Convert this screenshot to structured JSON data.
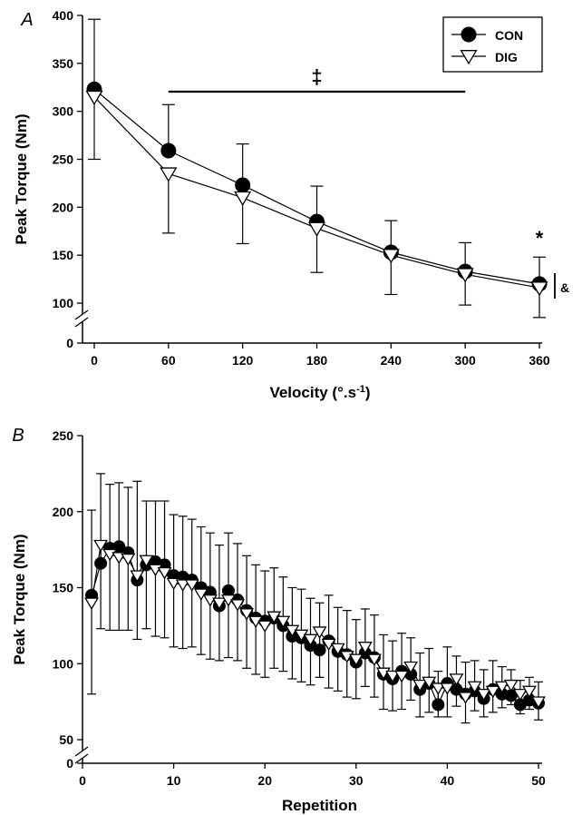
{
  "chart_data": [
    {
      "panel_label": "A",
      "type": "line",
      "xlabel": "Velocity (°.s",
      "xlabel_sup": "-1",
      "xlabel_close": ")",
      "ylabel": "Peak Torque (Nm)",
      "xlim": [
        0,
        360
      ],
      "ylim": [
        100,
        400
      ],
      "axis_break": true,
      "x_ticks": [
        0,
        60,
        120,
        180,
        240,
        300,
        360
      ],
      "y_ticks": [
        100,
        150,
        200,
        250,
        300,
        350,
        400
      ],
      "y_zero_label": "0",
      "x": [
        0,
        60,
        120,
        180,
        240,
        300,
        360
      ],
      "series": [
        {
          "name": "CON",
          "marker": "filled-circle",
          "values": [
            323,
            259,
            223,
            185,
            153,
            133,
            120
          ],
          "err_up": [
            73,
            48,
            43,
            37,
            33,
            30,
            28
          ]
        },
        {
          "name": "DIG",
          "marker": "open-triangle-down",
          "values": [
            315,
            235,
            210,
            178,
            150,
            130,
            116
          ],
          "err_down": [
            65,
            62,
            48,
            46,
            41,
            32,
            31
          ]
        }
      ],
      "legend": {
        "placement": "top-right",
        "entries": [
          "CON",
          "DIG"
        ]
      },
      "annotations": {
        "double_dagger": "‡",
        "double_dagger_range": [
          60,
          300
        ],
        "asterisk": "*",
        "ampersand": "&"
      },
      "grid": false
    },
    {
      "panel_label": "B",
      "type": "line",
      "xlabel": "Repetition",
      "ylabel": "Peak Torque (Nm)",
      "xlim": [
        0,
        50
      ],
      "ylim": [
        50,
        250
      ],
      "axis_break": true,
      "x_ticks": [
        0,
        10,
        20,
        30,
        40,
        50
      ],
      "y_ticks": [
        50,
        100,
        150,
        200,
        250
      ],
      "y_zero_label": "0",
      "x": [
        1,
        2,
        3,
        4,
        5,
        6,
        7,
        8,
        9,
        10,
        11,
        12,
        13,
        14,
        15,
        16,
        17,
        18,
        19,
        20,
        21,
        22,
        23,
        24,
        25,
        26,
        27,
        28,
        29,
        30,
        31,
        32,
        33,
        34,
        35,
        36,
        37,
        38,
        39,
        40,
        41,
        42,
        43,
        44,
        45,
        46,
        47,
        48,
        49,
        50
      ],
      "series": [
        {
          "name": "CON",
          "marker": "filled-circle",
          "values": [
            145,
            166,
            176,
            177,
            173,
            155,
            165,
            167,
            165,
            158,
            157,
            155,
            150,
            147,
            138,
            148,
            142,
            135,
            130,
            128,
            130,
            125,
            118,
            117,
            112,
            109,
            115,
            108,
            106,
            101,
            107,
            104,
            93,
            90,
            95,
            93,
            83,
            87,
            73,
            87,
            83,
            80,
            82,
            77,
            83,
            80,
            79,
            73,
            76,
            74
          ],
          "err_up": [
            56,
            59,
            42,
            42,
            43,
            65,
            42,
            40,
            42,
            40,
            40,
            40,
            40,
            39,
            40,
            38,
            37,
            36,
            35,
            33,
            33,
            32,
            32,
            32,
            31,
            31,
            30,
            29,
            29,
            28,
            29,
            28,
            26,
            25,
            25,
            24,
            24,
            23,
            22,
            24,
            22,
            21,
            20,
            19,
            19,
            18,
            17,
            16,
            15,
            14
          ]
        },
        {
          "name": "DIG",
          "marker": "open-triangle-down",
          "values": [
            140,
            178,
            172,
            170,
            169,
            158,
            168,
            162,
            160,
            153,
            152,
            152,
            146,
            142,
            140,
            142,
            139,
            133,
            128,
            125,
            131,
            128,
            122,
            119,
            116,
            121,
            113,
            110,
            105,
            103,
            111,
            103,
            94,
            92,
            92,
            98,
            86,
            88,
            84,
            84,
            90,
            78,
            85,
            80,
            82,
            85,
            86,
            80,
            82,
            75
          ],
          "err_down": [
            60,
            55,
            50,
            48,
            47,
            42,
            45,
            44,
            43,
            42,
            42,
            41,
            40,
            39,
            38,
            38,
            37,
            36,
            35,
            34,
            34,
            33,
            32,
            31,
            30,
            30,
            29,
            28,
            27,
            26,
            26,
            25,
            24,
            23,
            22,
            22,
            21,
            20,
            19,
            19,
            18,
            17,
            16,
            15,
            14,
            14,
            13,
            13,
            12,
            12
          ]
        }
      ],
      "grid": false
    }
  ]
}
